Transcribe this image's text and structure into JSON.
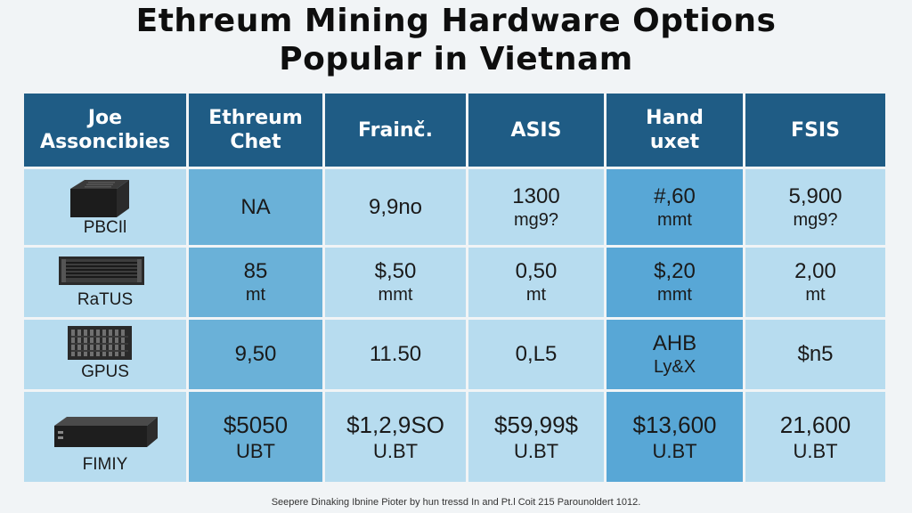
{
  "title": {
    "line1": "Ethreum Mining Hardware Options",
    "line2": "Popular in Vietnam"
  },
  "table": {
    "headers": [
      {
        "line1": "Joe",
        "line2": "Assoncibies"
      },
      {
        "line1": "Ethreum",
        "line2": "Chet"
      },
      {
        "line1": "Frainč.",
        "line2": ""
      },
      {
        "line1": "ASIS",
        "line2": ""
      },
      {
        "line1": "Hand",
        "line2": "uxet"
      },
      {
        "line1": "FSIS",
        "line2": ""
      }
    ],
    "rows": [
      {
        "label": "PBCIl",
        "image": "asic-miner-box",
        "cells": [
          {
            "main": "NA",
            "sub": ""
          },
          {
            "main": "9,9no",
            "sub": ""
          },
          {
            "main": "1300",
            "sub": "mg9?"
          },
          {
            "main": "#,60",
            "sub": "mmt"
          },
          {
            "main": "5,900",
            "sub": "mg9?"
          }
        ]
      },
      {
        "label": "RaTUS",
        "image": "rack-miner-unit",
        "cells": [
          {
            "main": "85",
            "sub": "mt"
          },
          {
            "main": "$,50",
            "sub": "mmt"
          },
          {
            "main": "0,50",
            "sub": "mt"
          },
          {
            "main": "$,20",
            "sub": "mmt"
          },
          {
            "main": "2,00",
            "sub": "mt"
          }
        ]
      },
      {
        "label": "GPUS",
        "image": "gpu-rig",
        "cells": [
          {
            "main": "9,50",
            "sub": ""
          },
          {
            "main": "11.50",
            "sub": ""
          },
          {
            "main": "0,L5",
            "sub": ""
          },
          {
            "main": "AHB",
            "sub": "Ly&X"
          },
          {
            "main": "$n5",
            "sub": ""
          }
        ]
      },
      {
        "label": "FIMIY",
        "image": "flat-miner-device",
        "cells": [
          {
            "main": "$5050",
            "sub": "UBT"
          },
          {
            "main": "$1,2,9SO",
            "sub": "U.BT"
          },
          {
            "main": "$59,99$",
            "sub": "U.BT"
          },
          {
            "main": "$13,600",
            "sub": "U.BT"
          },
          {
            "main": "21,600",
            "sub": "U.BT"
          }
        ]
      }
    ]
  },
  "footer": "Seepere Dinaking Ibnine Pioter by hun tressd In and Pt.l Coit 215 Parounoldert 1012.",
  "colors": {
    "header": "#1f5c85",
    "light": "#b7dcef",
    "mid": "#6ab1d8",
    "strong": "#58a7d6"
  }
}
